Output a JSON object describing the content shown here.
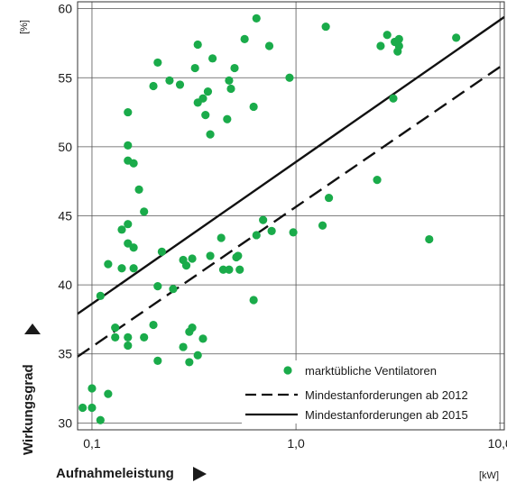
{
  "chart_data": {
    "type": "scatter",
    "title": "",
    "xlabel": "Aufnahmeleistung",
    "ylabel": "Wirkungsgrad",
    "x_unit": "[kW]",
    "y_unit": "[%]",
    "x_scale": "log",
    "xlim": [
      0.085,
      10.5
    ],
    "ylim": [
      29.5,
      60.5
    ],
    "x_ticks": [
      0.1,
      1.0,
      10.0
    ],
    "x_tick_labels": [
      "0,1",
      "1,0",
      "10,0"
    ],
    "y_ticks": [
      30,
      35,
      40,
      45,
      50,
      55,
      60
    ],
    "y_tick_labels": [
      "30",
      "35",
      "40",
      "45",
      "50",
      "55",
      "60"
    ],
    "grid": true,
    "legend_position": "bottom-right",
    "colors": {
      "points": "#1aab4a",
      "lines": "#111111"
    },
    "series": [
      {
        "name": "marktübliche Ventilatoren",
        "kind": "points",
        "points": [
          [
            0.09,
            31.1
          ],
          [
            0.1,
            31.1
          ],
          [
            0.1,
            32.5
          ],
          [
            0.11,
            30.2
          ],
          [
            0.12,
            32.1
          ],
          [
            0.11,
            39.2
          ],
          [
            0.12,
            41.5
          ],
          [
            0.13,
            36.9
          ],
          [
            0.13,
            36.2
          ],
          [
            0.15,
            35.6
          ],
          [
            0.15,
            36.2
          ],
          [
            0.14,
            41.2
          ],
          [
            0.14,
            44.0
          ],
          [
            0.15,
            44.4
          ],
          [
            0.15,
            43.0
          ],
          [
            0.16,
            42.7
          ],
          [
            0.16,
            41.2
          ],
          [
            0.15,
            49.0
          ],
          [
            0.16,
            48.8
          ],
          [
            0.15,
            50.1
          ],
          [
            0.15,
            52.5
          ],
          [
            0.17,
            46.9
          ],
          [
            0.18,
            45.3
          ],
          [
            0.18,
            36.2
          ],
          [
            0.2,
            37.1
          ],
          [
            0.2,
            54.4
          ],
          [
            0.21,
            56.1
          ],
          [
            0.21,
            39.9
          ],
          [
            0.21,
            34.5
          ],
          [
            0.22,
            42.4
          ],
          [
            0.24,
            54.8
          ],
          [
            0.25,
            39.7
          ],
          [
            0.27,
            54.5
          ],
          [
            0.28,
            41.8
          ],
          [
            0.29,
            41.4
          ],
          [
            0.28,
            35.5
          ],
          [
            0.3,
            36.6
          ],
          [
            0.3,
            34.4
          ],
          [
            0.31,
            36.9
          ],
          [
            0.31,
            41.9
          ],
          [
            0.32,
            55.7
          ],
          [
            0.33,
            53.2
          ],
          [
            0.33,
            57.4
          ],
          [
            0.33,
            34.9
          ],
          [
            0.35,
            36.1
          ],
          [
            0.35,
            53.5
          ],
          [
            0.37,
            54.0
          ],
          [
            0.36,
            52.3
          ],
          [
            0.38,
            50.9
          ],
          [
            0.39,
            56.4
          ],
          [
            0.38,
            42.1
          ],
          [
            0.43,
            43.4
          ],
          [
            0.44,
            41.1
          ],
          [
            0.47,
            41.1
          ],
          [
            0.47,
            54.8
          ],
          [
            0.46,
            52.0
          ],
          [
            0.48,
            54.2
          ],
          [
            0.5,
            55.7
          ],
          [
            0.51,
            42.0
          ],
          [
            0.52,
            42.1
          ],
          [
            0.53,
            41.1
          ],
          [
            0.56,
            57.8
          ],
          [
            0.62,
            38.9
          ],
          [
            0.62,
            52.9
          ],
          [
            0.64,
            43.6
          ],
          [
            0.64,
            59.3
          ],
          [
            0.69,
            44.7
          ],
          [
            0.74,
            57.3
          ],
          [
            0.76,
            43.9
          ],
          [
            0.93,
            55.0
          ],
          [
            0.97,
            43.8
          ],
          [
            1.35,
            44.3
          ],
          [
            1.4,
            58.7
          ],
          [
            1.45,
            46.3
          ],
          [
            2.5,
            47.6
          ],
          [
            2.6,
            57.3
          ],
          [
            2.8,
            58.1
          ],
          [
            3.0,
            53.5
          ],
          [
            3.05,
            57.6
          ],
          [
            3.15,
            56.9
          ],
          [
            3.2,
            57.8
          ],
          [
            3.2,
            57.3
          ],
          [
            4.5,
            43.3
          ],
          [
            6.1,
            57.9
          ]
        ]
      },
      {
        "name": "Mindestanforderungen ab 2012",
        "kind": "line",
        "style": "dashed",
        "points": [
          [
            0.085,
            34.8
          ],
          [
            10.5,
            56.0
          ]
        ]
      },
      {
        "name": "Mindestanforderungen ab 2015",
        "kind": "line",
        "style": "solid",
        "points": [
          [
            0.085,
            37.9
          ],
          [
            10.5,
            59.4
          ]
        ]
      }
    ]
  }
}
